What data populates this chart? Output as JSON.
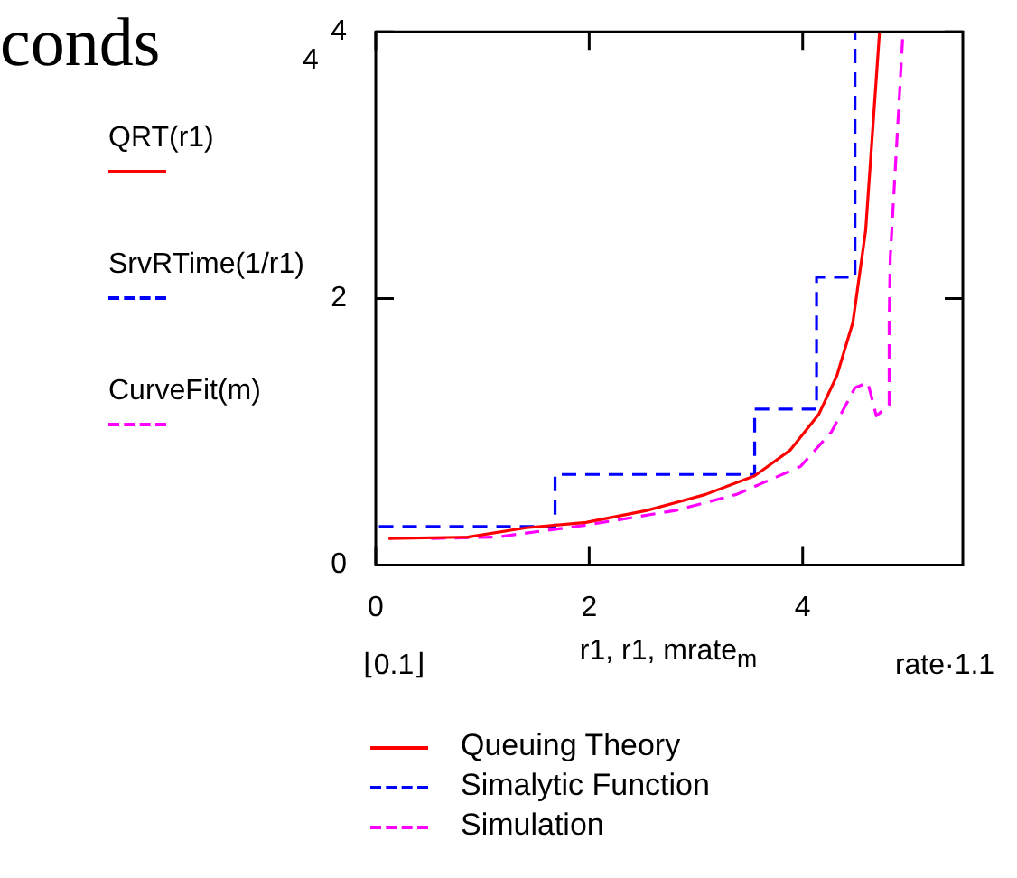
{
  "chart_data": {
    "type": "line",
    "title": "conds",
    "xlabel": "r1, r1, mrate$_{m}$",
    "ylabel": "QRT(r1)\nSrvRTime(1/r1)\nCurveFit(m)",
    "annotations": [
      "⌊0.1⌋",
      "rate·1.1",
      "4"
    ],
    "xlim": [
      0,
      5.5
    ],
    "xticks": [
      0,
      2,
      4
    ],
    "ylim": [
      0,
      4
    ],
    "yticks": [
      0,
      2,
      4
    ],
    "grid": false,
    "legend": "bottom",
    "marker": "none",
    "series": [
      {
        "name": "Queuing Theory",
        "color": "#ff0000",
        "line_style": "solid",
        "x": [
          0.12,
          0.86,
          1.41,
          1.97,
          2.54,
          3.09,
          3.55,
          3.88,
          4.15,
          4.32,
          4.47,
          4.59,
          4.72
        ],
        "values": [
          0.2,
          0.21,
          0.28,
          0.32,
          0.41,
          0.53,
          0.67,
          0.86,
          1.13,
          1.42,
          1.82,
          2.51,
          4.0
        ]
      },
      {
        "name": "Simalytic Function",
        "color": "#0000ff",
        "type": "step",
        "line_style": "dashed",
        "x": [
          0.03,
          1.68,
          3.55,
          4.13,
          4.49
        ],
        "values": [
          0.29,
          0.68,
          1.17,
          2.16,
          4.0
        ]
      },
      {
        "name": "Simulation",
        "color": "#ff00ff",
        "line_style": "dashed",
        "x": [
          0.52,
          1.13,
          1.97,
          2.81,
          3.38,
          3.98,
          4.27,
          4.49,
          4.61,
          4.69,
          4.81,
          4.81,
          4.82,
          4.94
        ],
        "values": [
          0.2,
          0.21,
          0.3,
          0.41,
          0.53,
          0.74,
          1.0,
          1.33,
          1.37,
          1.12,
          1.2,
          1.82,
          2.3,
          4.0
        ]
      }
    ]
  }
}
